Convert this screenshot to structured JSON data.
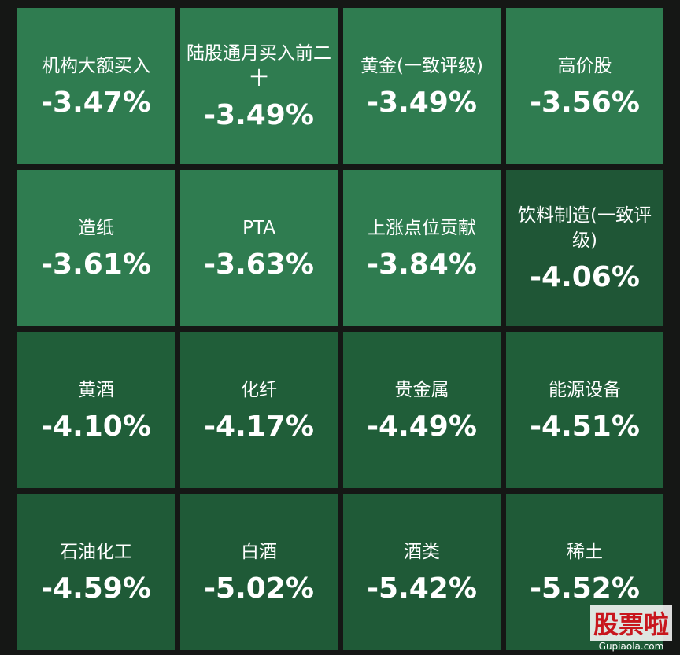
{
  "tiles": [
    {
      "name": "机构大额买入",
      "change": "-3.47%",
      "color": "#2f7c50"
    },
    {
      "name": "陆股通月买入前二十",
      "change": "-3.49%",
      "color": "#2f7c50"
    },
    {
      "name": "黄金(一致评级)",
      "change": "-3.49%",
      "color": "#2f7c50"
    },
    {
      "name": "高价股",
      "change": "-3.56%",
      "color": "#2f7c50"
    },
    {
      "name": "造纸",
      "change": "-3.61%",
      "color": "#2f7c50"
    },
    {
      "name": "PTA",
      "change": "-3.63%",
      "color": "#2f7c50"
    },
    {
      "name": "上涨点位贡献",
      "change": "-3.84%",
      "color": "#2f7c50"
    },
    {
      "name": "饮料制造(一致评级)",
      "change": "-4.06%",
      "color": "#1f5636"
    },
    {
      "name": "黄酒",
      "change": "-4.10%",
      "color": "#205e39"
    },
    {
      "name": "化纤",
      "change": "-4.17%",
      "color": "#205e39"
    },
    {
      "name": "贵金属",
      "change": "-4.49%",
      "color": "#205e39"
    },
    {
      "name": "能源设备",
      "change": "-4.51%",
      "color": "#205e39"
    },
    {
      "name": "石油化工",
      "change": "-4.59%",
      "color": "#1f5a37"
    },
    {
      "name": "白酒",
      "change": "-5.02%",
      "color": "#1f5a37"
    },
    {
      "name": "酒类",
      "change": "-5.42%",
      "color": "#1f5a37"
    },
    {
      "name": "稀土",
      "change": "-5.52%",
      "color": "#1f5a37"
    }
  ],
  "watermark": {
    "logo": "股票啦",
    "url": "Gupiaola.com"
  }
}
